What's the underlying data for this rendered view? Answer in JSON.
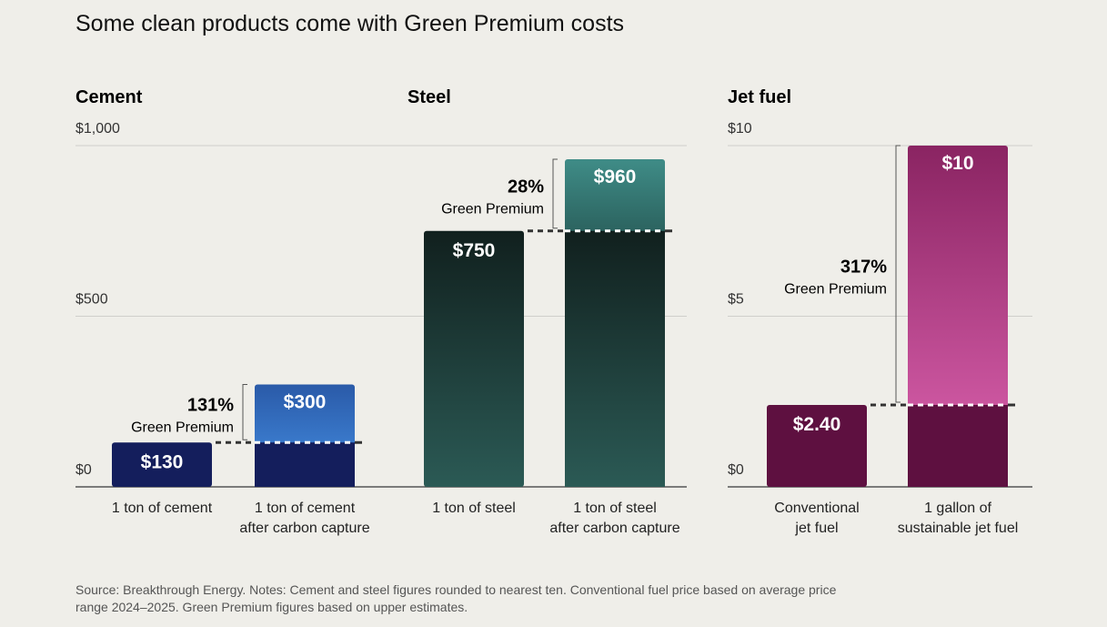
{
  "title": "Some clean products come with Green Premium costs",
  "note": "Source: Breakthrough Energy. Notes: Cement and steel figures rounded to nearest ten. Conventional fuel price based on average price range 2024–2025. Green Premium figures based on upper estimates.",
  "chart_data": [
    {
      "type": "bar",
      "panels": [
        {
          "title": "Cement",
          "categories": [
            "1 ton of cement",
            "1 ton of cement after carbon capture"
          ],
          "values": [
            130,
            300
          ],
          "labels": [
            "$130",
            "$300"
          ],
          "premium": "131%",
          "premium_label": "Green Premium"
        },
        {
          "title": "Steel",
          "categories": [
            "1 ton of steel",
            "1 ton of steel after carbon capture"
          ],
          "values": [
            750,
            960
          ],
          "labels": [
            "$750",
            "$960"
          ],
          "premium": "28%",
          "premium_label": "Green Premium"
        }
      ],
      "ylim": [
        0,
        1000
      ],
      "yticks": [
        "$0",
        "$500",
        "$1,000"
      ],
      "colors": {
        "base": "#141e5c",
        "premium_top": "#2a5aa8",
        "premium_bottom": "#3a7acc",
        "steel_top": "#11201e",
        "steel_bottom": "#2b5a55",
        "steel_prem_top": "#3f8c87",
        "steel_prem_bottom": "#2b625e"
      }
    },
    {
      "type": "bar",
      "panels": [
        {
          "title": "Jet fuel",
          "categories": [
            "Conventional jet fuel",
            "1 gallon of sustainable jet fuel"
          ],
          "values": [
            2.4,
            10
          ],
          "labels": [
            "$2.40",
            "$10"
          ],
          "premium": "317%",
          "premium_label": "Green Premium"
        }
      ],
      "ylim": [
        0,
        10
      ],
      "yticks": [
        "$0",
        "$5",
        "$10"
      ],
      "colors": {
        "base": "#5e1040",
        "premium_top": "#8a2462",
        "premium_bottom": "#cc56a0"
      }
    }
  ]
}
